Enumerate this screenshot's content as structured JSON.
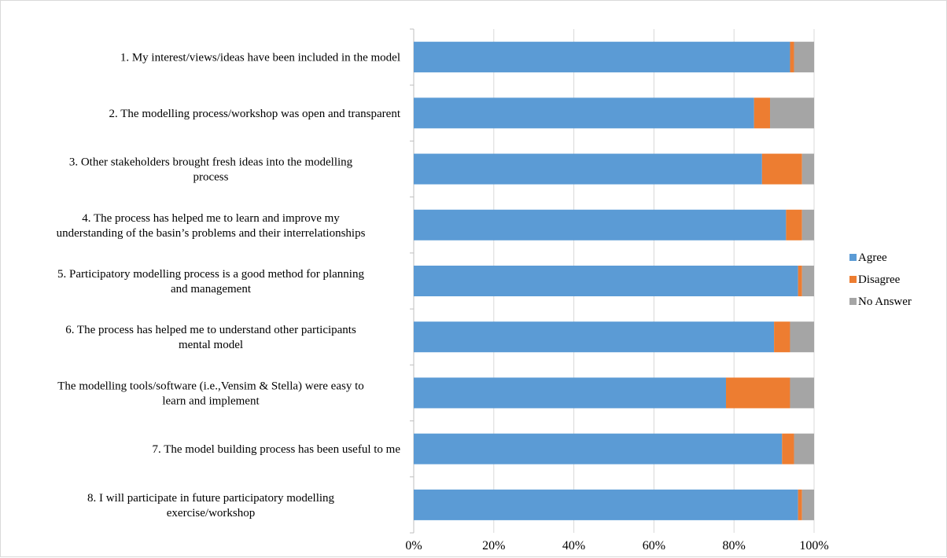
{
  "chart_data": {
    "type": "bar",
    "orientation": "horizontal",
    "stacked": "percent",
    "title": "",
    "xlabel": "",
    "ylabel": "",
    "xlim": [
      0,
      100
    ],
    "x_ticks": [
      "0%",
      "20%",
      "40%",
      "60%",
      "80%",
      "100%"
    ],
    "grid": "vertical",
    "legend_position": "right",
    "categories": [
      [
        "1. My interest/views/ideas have been included in the model"
      ],
      [
        "2. The modelling process/workshop was open and transparent"
      ],
      [
        "3. Other stakeholders brought fresh ideas into the modelling",
        "process"
      ],
      [
        "4. The process has helped me to learn and improve my",
        "understanding of the basin’s problems and their interrelationships"
      ],
      [
        "5. Participatory modelling process is a good method for planning",
        "and management"
      ],
      [
        "6. The process has helped me to understand other participants",
        "mental model"
      ],
      [
        "The modelling tools/software (i.e.,Vensim & Stella) were easy to",
        "learn and implement"
      ],
      [
        "7. The model building process has been useful to me"
      ],
      [
        "8. I will participate in future participatory modelling",
        "exercise/workshop"
      ]
    ],
    "series": [
      {
        "name": "Agree",
        "color": "#5b9bd5",
        "values": [
          94,
          85,
          87,
          93,
          96,
          90,
          78,
          92,
          96
        ]
      },
      {
        "name": "Disagree",
        "color": "#ed7d31",
        "values": [
          1,
          4,
          10,
          4,
          1,
          4,
          16,
          3,
          1
        ]
      },
      {
        "name": "No Answer",
        "color": "#a5a5a5",
        "values": [
          5,
          11,
          3,
          3,
          3,
          6,
          6,
          5,
          3
        ]
      }
    ]
  }
}
